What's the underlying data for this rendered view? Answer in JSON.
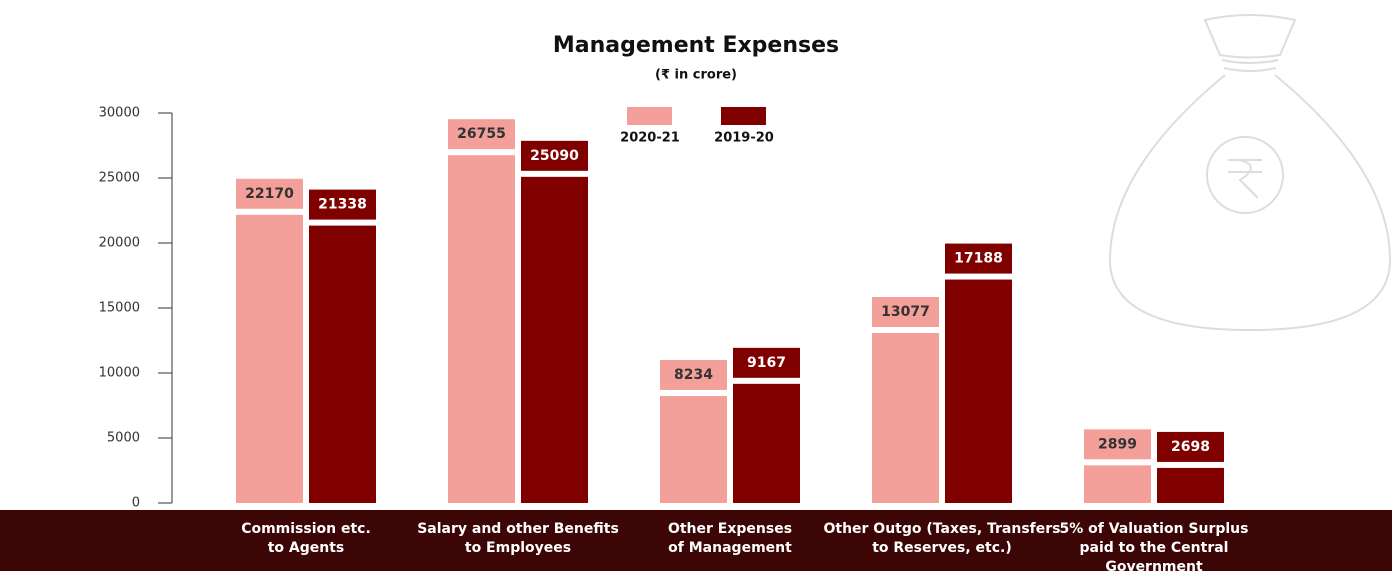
{
  "chart_data": {
    "type": "bar",
    "title": "Management Expenses",
    "subtitle": "(₹ in crore)",
    "categories": [
      "Commission etc.\nto Agents",
      "Salary and other Benefits\nto Employees",
      "Other Expenses\nof Management",
      "Other Outgo (Taxes, Transfers\nto Reserves, etc.)",
      "5% of Valuation Surplus\npaid to the Central Government"
    ],
    "series": [
      {
        "name": "2020-21",
        "color": "#f4a09a",
        "values": [
          22170,
          26755,
          8234,
          13077,
          2899
        ]
      },
      {
        "name": "2019-20",
        "color": "#800000",
        "values": [
          21338,
          25090,
          9167,
          17188,
          2698
        ]
      }
    ],
    "ylim": [
      0,
      30000
    ],
    "yticks": [
      0,
      5000,
      10000,
      15000,
      20000,
      25000,
      30000
    ]
  }
}
